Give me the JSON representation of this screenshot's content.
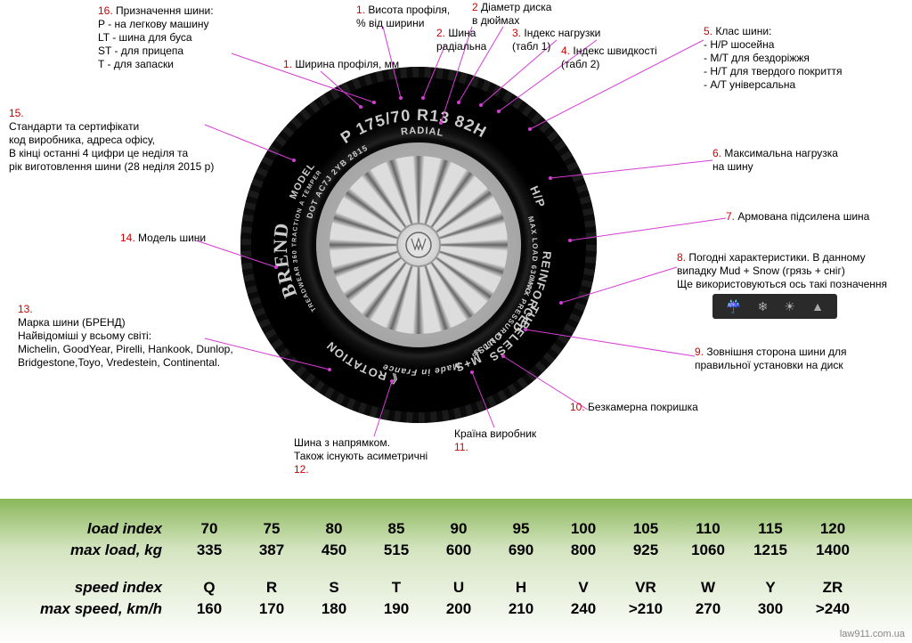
{
  "colors": {
    "callout_line": "#d63cd6",
    "label_num": "#cc0000",
    "tire_text": "#cccccc",
    "table_bg_top": "#8ab85a",
    "table_bg_bottom": "#ffffff"
  },
  "tire_markings": {
    "main": "P 175/70 R13 82H",
    "radial": "RADIAL",
    "hp": "H/P",
    "reinforced": "REINFORCED",
    "maxload": "MAX LOAD 630 KG",
    "maxpress": "MAX PRESSURE 300 kPa",
    "ms": "M+S",
    "tubeless": "TUBELESS",
    "outside": "OUTSIDE",
    "made": "Made in France",
    "rotation": "《 ROTATION",
    "treadwear": "TREADWEAR 360 TRACTION A\nTEMPERATURE A",
    "brend": "BREND",
    "model": "MODEL",
    "dot": "DOT AC7J 2YB 2815"
  },
  "callouts": {
    "c1": {
      "num": "1.",
      "text": "Висота профіля,\n% від ширини"
    },
    "c1b": {
      "num": "1.",
      "text": "Ширина профіля, мм"
    },
    "c2": {
      "num": "2.",
      "text": "Шина\nрадіальна"
    },
    "c2b": {
      "num": "2",
      "text": "Діаметр диска\nв дюймах"
    },
    "c3": {
      "num": "3.",
      "text": "Індекс нагрузки\n(табл 1)"
    },
    "c4": {
      "num": "4.",
      "text": "Індекс швидкості\n(табл 2)"
    },
    "c5": {
      "num": "5.",
      "text": "Клас шини:\n- H/P шосейна\n- M/T для бездоріжжя\n- H/T для твердого покриття\n- A/T універсальна"
    },
    "c6": {
      "num": "6.",
      "text": "Максимальна нагрузка\nна шину"
    },
    "c7": {
      "num": "7.",
      "text": "Армована підсилена шина"
    },
    "c8": {
      "num": "8.",
      "text": "Погодні характеристики. В данному\nвипадку Mud + Snow (грязь + сніг)\nЩе використовуються ось такі позначення"
    },
    "c9": {
      "num": "9.",
      "text": "Зовнішня сторона шини для\nправильної установки на диск"
    },
    "c10": {
      "num": "10.",
      "text": "Безкамерна покришка"
    },
    "c11": {
      "num": "11.",
      "text": "Країна виробник"
    },
    "c12": {
      "num": "12.",
      "text": "Шина з напрямком.\nТакож існують асиметричні"
    },
    "c13": {
      "num": "13.",
      "text": "Марка шини (БРЕНД)\nНайвідоміші у всьому світі:\nMichelin, GoodYear, Pirelli, Hankook, Dunlop,\nBridgestone,Toyo, Vredestein, Continental."
    },
    "c14": {
      "num": "14.",
      "text": "Модель шини"
    },
    "c15": {
      "num": "15.",
      "text": "Стандарти та сертифікати\nкод виробника, адреса офісу,\nВ кінці останні 4 цифри це неділя та\nрік виготовлення шини (28 неділя 2015 р)"
    },
    "c16": {
      "num": "16.",
      "text": "Призначення шини:\nP - на легкову машину\nLT - шина для буса\nST - для прицепа\nT - для запаски"
    }
  },
  "load_table": {
    "header1": "load index",
    "header2": "max load, kg",
    "indices": [
      "70",
      "75",
      "80",
      "85",
      "90",
      "95",
      "100",
      "105",
      "110",
      "115",
      "120"
    ],
    "loads": [
      "335",
      "387",
      "450",
      "515",
      "600",
      "690",
      "800",
      "925",
      "1060",
      "1215",
      "1400"
    ]
  },
  "speed_table": {
    "header1": "speed index",
    "header2": "max speed, km/h",
    "indices": [
      "Q",
      "R",
      "S",
      "T",
      "U",
      "H",
      "V",
      "VR",
      "W",
      "Y",
      "ZR"
    ],
    "speeds": [
      "160",
      "170",
      "180",
      "190",
      "200",
      "210",
      "240",
      ">210",
      "270",
      "300",
      ">240"
    ]
  },
  "watermark": "law911.com.ua",
  "center_logo": "VW"
}
